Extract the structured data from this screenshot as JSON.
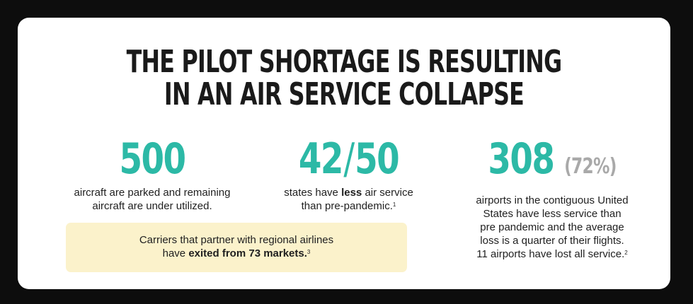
{
  "title": {
    "line1": "THE PILOT SHORTAGE IS RESULTING",
    "line2": "IN AN AIR SERVICE COLLAPSE"
  },
  "stats": [
    {
      "value": "500",
      "desc_line1": "aircraft are parked and remaining",
      "desc_line2": "aircraft are under utilized."
    },
    {
      "value_a": "42",
      "slash": "/",
      "value_b": "50",
      "desc_prefix": "states have ",
      "desc_bold": "less",
      "desc_suffix": " air service",
      "desc_line2": "than pre-pandemic.",
      "footnote": "1"
    },
    {
      "value": "308",
      "value_pct": "(72%)",
      "desc_line1": "airports in the contiguous United",
      "desc_line2": "States have less service than",
      "desc_line3": "pre pandemic and the average",
      "desc_line4": "loss is a quarter of their flights.",
      "desc_line5": "11 airports have lost all service.",
      "footnote": "2"
    }
  ],
  "callout": {
    "line1": "Carriers that partner with regional airlines",
    "line2_prefix": "have ",
    "line2_bold": "exited from 73 markets.",
    "footnote": "3"
  },
  "colors": {
    "accent": "#2cb9a6",
    "muted": "#a9a9a9",
    "callout_bg": "#fbf2cb",
    "background": "#0d0d0d"
  }
}
